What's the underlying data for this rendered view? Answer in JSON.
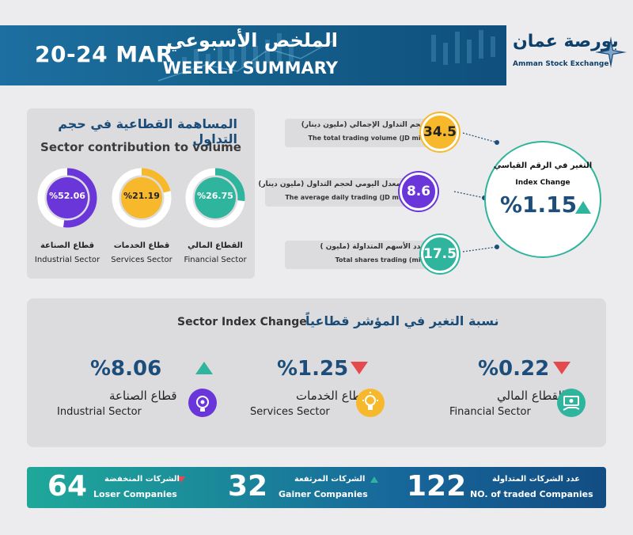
{
  "header": {
    "date": "20-24 MAR",
    "title_ar": "الملخص الأسبوعي",
    "title_en": "WEEKLY SUMMARY",
    "logo_ar": "بورصة عمان",
    "logo_en": "Amman Stock Exchange"
  },
  "contribution": {
    "title_ar": "المساهمة القطاعية في حجم التداول",
    "title_en": "Sector contribution to volume",
    "sectors": [
      {
        "value_text": "%52.06",
        "share": 0.5206,
        "label_ar": "قطاع الصناعة",
        "label_en": "Industrial Sector",
        "color": "#6a35d9"
      },
      {
        "value_text": "%21.19",
        "share": 0.2119,
        "label_ar": "قطاع الخدمات",
        "label_en": "Services Sector",
        "color": "#f7b92b"
      },
      {
        "value_text": "%26.75",
        "share": 0.2675,
        "label_ar": "القطاع المالي",
        "label_en": "Financial Sector",
        "color": "#2fb49d"
      }
    ]
  },
  "stats": {
    "volume": {
      "label_ar": "حجم التداول الإجمالي (مليون دينار)",
      "label_en": "The total trading volume (JD mil)",
      "value": "34.5"
    },
    "daily": {
      "label_ar": "المعدل اليومي لحجم التداول (مليون دينار)",
      "label_en": "The average daily trading (JD mil)",
      "value": "8.6"
    },
    "shares": {
      "label_ar": "عدد الأسهم المتداولة (مليون )",
      "label_en": "Total shares trading (mil)",
      "value": "17.5"
    }
  },
  "index_change": {
    "label_ar": "التغير في الرقم القياسي",
    "label_en": "Index Change",
    "value": "%1.15",
    "direction": "up"
  },
  "sector_index": {
    "title_en": "Sector Index Change",
    "title_ar": "نسبة التغير في المؤشر قطاعياً",
    "items": [
      {
        "value": "%8.06",
        "direction": "up",
        "label_ar": "قطاع الصناعة",
        "label_en": "Industrial Sector",
        "icon": "gear-bulb-icon",
        "color": "#6a35d9"
      },
      {
        "value": "%1.25",
        "direction": "down",
        "label_ar": "قطاع الخدمات",
        "label_en": "Services Sector",
        "icon": "lightbulb-icon",
        "color": "#f7b92b"
      },
      {
        "value": "%0.22",
        "direction": "down",
        "label_ar": "القطاع المالي",
        "label_en": "Financial Sector",
        "icon": "money-hand-icon",
        "color": "#2fb49d"
      }
    ]
  },
  "footer": {
    "loser": {
      "value": "64",
      "label_ar": "الشركات المنخفضة",
      "label_en": "Loser Companies"
    },
    "gainer": {
      "value": "32",
      "label_ar": "الشركات المرتفعة",
      "label_en": "Gainer Companies"
    },
    "traded": {
      "value": "122",
      "label_ar": "عدد الشركات المتداولة",
      "label_en": "NO. of traded Companies"
    }
  },
  "colors": {
    "up": "#2fb49d",
    "down": "#e5484d",
    "navy": "#1d4d7a"
  }
}
